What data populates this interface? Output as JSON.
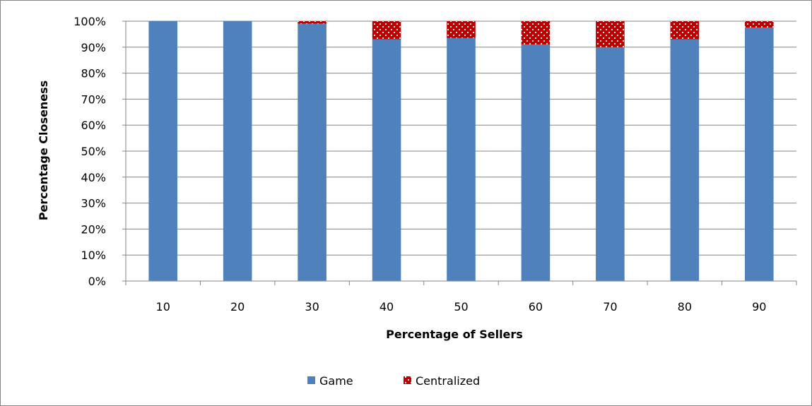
{
  "chart_data": {
    "type": "bar",
    "stacked": true,
    "categories": [
      "10",
      "20",
      "30",
      "40",
      "50",
      "60",
      "70",
      "80",
      "90"
    ],
    "series": [
      {
        "name": "Game",
        "values": [
          100,
          100,
          99,
          93,
          93.5,
          91,
          90,
          93,
          97.5
        ],
        "color": "#4F81BD"
      },
      {
        "name": "Centralized",
        "values": [
          0,
          0,
          1,
          7,
          6.5,
          9,
          10,
          7,
          2.5
        ],
        "color": "#C00000"
      }
    ],
    "xlabel": "Percentage of Sellers",
    "ylabel": "Percentage Closeness",
    "ylim": [
      0,
      100
    ],
    "yticks": [
      "0%",
      "10%",
      "20%",
      "30%",
      "40%",
      "50%",
      "60%",
      "70%",
      "80%",
      "90%",
      "100%"
    ],
    "grid": true,
    "legend_position": "bottom"
  }
}
